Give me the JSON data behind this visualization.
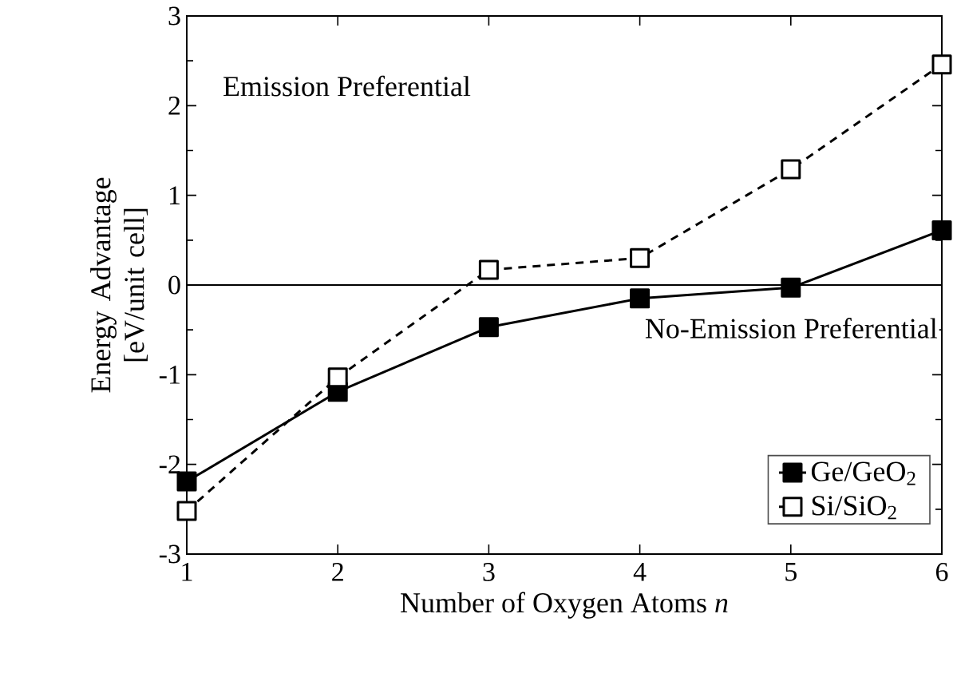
{
  "chart_data": {
    "type": "line",
    "xlabel": "Number of Oxygen Atoms *n*",
    "ylabel": "Energy Advantage [eV/unit cell]",
    "x": [
      1,
      2,
      3,
      4,
      5,
      6
    ],
    "series": [
      {
        "name": "Ge/GeO$_{2}$",
        "color": "#000000",
        "values": [
          -2.19,
          -1.19,
          -0.47,
          -0.15,
          -0.03,
          0.61
        ],
        "marker": "square",
        "line_style": "solid"
      },
      {
        "name": "Si/SiO$_{2}$",
        "color": "#000000",
        "values": [
          -2.52,
          -1.03,
          0.17,
          0.3,
          1.29,
          2.46
        ],
        "marker": "square",
        "line_style": "dashed"
      }
    ],
    "xlim": [
      1,
      6
    ],
    "ylim": [
      -3,
      3
    ],
    "xticks": [
      1,
      2,
      3,
      4,
      5,
      6
    ],
    "yticks": [
      -3,
      -2,
      -1,
      0,
      1,
      2,
      3
    ],
    "ref_lines": [
      {
        "axis": "y",
        "value": 0,
        "color": "#000000"
      }
    ],
    "annotations": [
      "Emission Preferential",
      "No-Emission Preferential"
    ],
    "legend": "bottom right",
    "grid": false
  }
}
